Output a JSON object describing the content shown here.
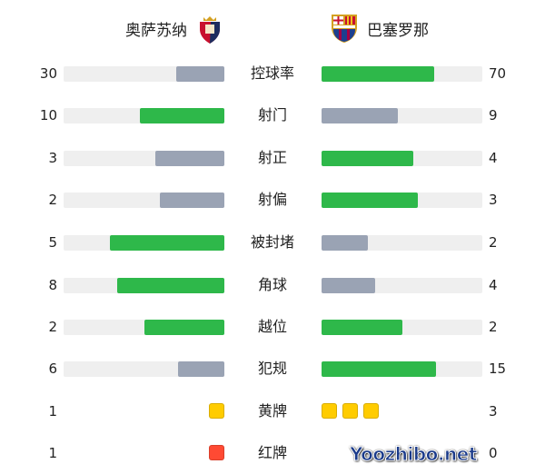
{
  "home": {
    "name": "奥萨苏纳",
    "crest": "osasuna-crest-icon"
  },
  "away": {
    "name": "巴塞罗那",
    "crest": "barcelona-crest-icon"
  },
  "colors": {
    "win": "#2eb84a",
    "lose": "#9aa3b4",
    "track": "#efefef",
    "yellow": "#ffcc00",
    "red": "#ff4a33"
  },
  "stats": [
    {
      "label": "控球率",
      "home": 30,
      "away": 70
    },
    {
      "label": "射门",
      "home": 10,
      "away": 9
    },
    {
      "label": "射正",
      "home": 3,
      "away": 4
    },
    {
      "label": "射偏",
      "home": 2,
      "away": 3
    },
    {
      "label": "被封堵",
      "home": 5,
      "away": 2
    },
    {
      "label": "角球",
      "home": 8,
      "away": 4
    },
    {
      "label": "越位",
      "home": 2,
      "away": 2
    },
    {
      "label": "犯规",
      "home": 6,
      "away": 15
    }
  ],
  "cards": [
    {
      "label": "黄牌",
      "home": 1,
      "away": 3,
      "type": "yellow"
    },
    {
      "label": "红牌",
      "home": 1,
      "away": 0,
      "type": "red"
    }
  ],
  "watermark": "Yoozhibo.net"
}
